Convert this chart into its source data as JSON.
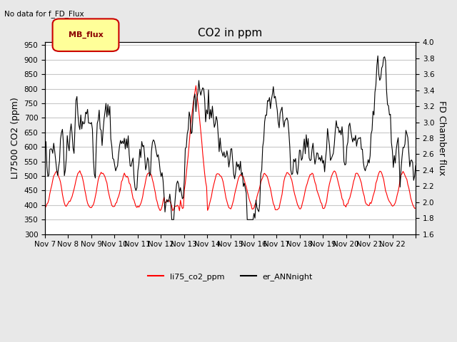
{
  "title": "CO2 in ppm",
  "subtitle": "No data for f_FD_Flux",
  "ylabel_left": "LI7500 CO2 (ppm)",
  "ylabel_right": "FD Chamber flux",
  "ylim_left": [
    300,
    960
  ],
  "ylim_right": [
    1.6,
    4.0
  ],
  "yticks_left": [
    300,
    350,
    400,
    450,
    500,
    550,
    600,
    650,
    700,
    750,
    800,
    850,
    900,
    950
  ],
  "yticks_right": [
    1.6,
    1.8,
    2.0,
    2.2,
    2.4,
    2.6,
    2.8,
    3.0,
    3.2,
    3.4,
    3.6,
    3.8,
    4.0
  ],
  "xtick_positions": [
    0,
    1,
    2,
    3,
    4,
    5,
    6,
    7,
    8,
    9,
    10,
    11,
    12,
    13,
    14,
    15,
    16
  ],
  "xtick_labels": [
    "Nov 7",
    "Nov 8",
    "Nov 9",
    "Nov 10",
    "Nov 11",
    "Nov 12",
    "Nov 13",
    "Nov 14",
    "Nov 15",
    "Nov 16",
    "Nov 17",
    "Nov 18",
    "Nov 19",
    "Nov 20",
    "Nov 21",
    "Nov 22",
    ""
  ],
  "line1_color": "red",
  "line2_color": "black",
  "line1_label": "li75_co2_ppm",
  "line2_label": "er_ANNnight",
  "legend_box_label": "MB_flux",
  "legend_box_color": "#ffff99",
  "legend_box_border": "#cc0000",
  "background_color": "#e8e8e8",
  "plot_bg_color": "#ffffff",
  "grid_color": "#c8c8c8",
  "title_fontsize": 11,
  "label_fontsize": 9,
  "tick_fontsize": 7.5
}
